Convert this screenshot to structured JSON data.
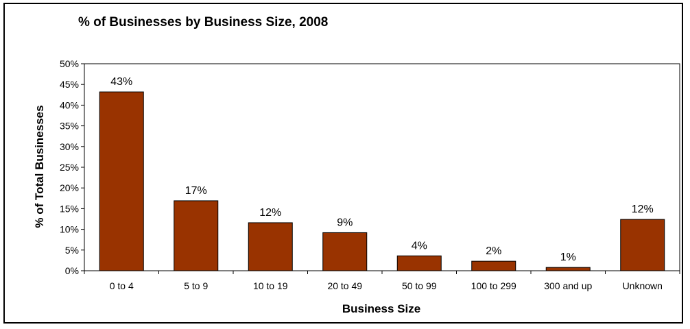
{
  "chart_data": {
    "type": "bar",
    "title": "% of Businesses by Business Size, 2008",
    "xlabel": "Business Size",
    "ylabel": "% of Total Businesses",
    "categories": [
      "0 to 4",
      "5 to 9",
      "10 to 19",
      "20 to 49",
      "50 to 99",
      "100 to 299",
      "300 and up",
      "Unknown"
    ],
    "values": [
      43,
      17,
      12,
      9,
      4,
      2,
      1,
      12
    ],
    "data_labels": [
      "43%",
      "17%",
      "12%",
      "9%",
      "4%",
      "2%",
      "1%",
      "12%"
    ],
    "bar_heights_percent": [
      43.2,
      16.9,
      11.6,
      9.2,
      3.6,
      2.3,
      0.8,
      12.4
    ],
    "ylim": [
      0,
      50
    ],
    "yticks": [
      0,
      5,
      10,
      15,
      20,
      25,
      30,
      35,
      40,
      45,
      50
    ],
    "ytick_labels": [
      "0%",
      "5%",
      "10%",
      "15%",
      "20%",
      "25%",
      "30%",
      "35%",
      "40%",
      "45%",
      "50%"
    ],
    "grid": false,
    "legend": "none",
    "bar_color": "#993300",
    "bar_edge_color": "#000000"
  }
}
